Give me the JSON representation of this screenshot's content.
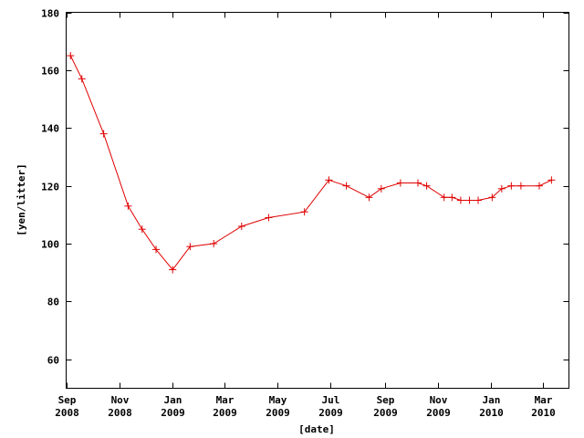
{
  "chart_data": {
    "type": "line",
    "xlabel": "[date]",
    "ylabel": "[yen/litter]",
    "ylim": [
      50,
      180
    ],
    "xlim": [
      "2008-09-01",
      "2010-03-31"
    ],
    "y_ticks": [
      60,
      80,
      100,
      120,
      140,
      160,
      180
    ],
    "x_ticks": [
      {
        "date": "2008-09-01",
        "month": "Sep",
        "year": "2008"
      },
      {
        "date": "2008-11-01",
        "month": "Nov",
        "year": "2008"
      },
      {
        "date": "2009-01-01",
        "month": "Jan",
        "year": "2009"
      },
      {
        "date": "2009-03-01",
        "month": "Mar",
        "year": "2009"
      },
      {
        "date": "2009-05-01",
        "month": "May",
        "year": "2009"
      },
      {
        "date": "2009-07-01",
        "month": "Jul",
        "year": "2009"
      },
      {
        "date": "2009-09-01",
        "month": "Sep",
        "year": "2009"
      },
      {
        "date": "2009-11-01",
        "month": "Nov",
        "year": "2009"
      },
      {
        "date": "2010-01-01",
        "month": "Jan",
        "year": "2010"
      },
      {
        "date": "2010-03-01",
        "month": "Mar",
        "year": "2010"
      }
    ],
    "grid": false,
    "legend": "none",
    "line_color": "#e00000",
    "series": [
      {
        "x": [
          "2008-09-06",
          "2008-09-19",
          "2008-10-14",
          "2008-11-11",
          "2008-11-27",
          "2008-12-13",
          "2009-01-01",
          "2009-01-21",
          "2009-02-17",
          "2009-03-21",
          "2009-04-21",
          "2009-06-01",
          "2009-06-29",
          "2009-07-19",
          "2009-08-14",
          "2009-08-28",
          "2009-09-19",
          "2009-10-09",
          "2009-10-19",
          "2009-11-08",
          "2009-11-17",
          "2009-11-27",
          "2009-12-07",
          "2009-12-17",
          "2010-01-02",
          "2010-01-13",
          "2010-01-24",
          "2010-02-04",
          "2010-02-25",
          "2010-03-11"
        ],
        "y": [
          165,
          157,
          138,
          113,
          105,
          98,
          91,
          99,
          100,
          106,
          109,
          111,
          122,
          120,
          116,
          119,
          121,
          121,
          120,
          116,
          116,
          115,
          115,
          115,
          116,
          119,
          120,
          120,
          120,
          122
        ]
      }
    ]
  }
}
